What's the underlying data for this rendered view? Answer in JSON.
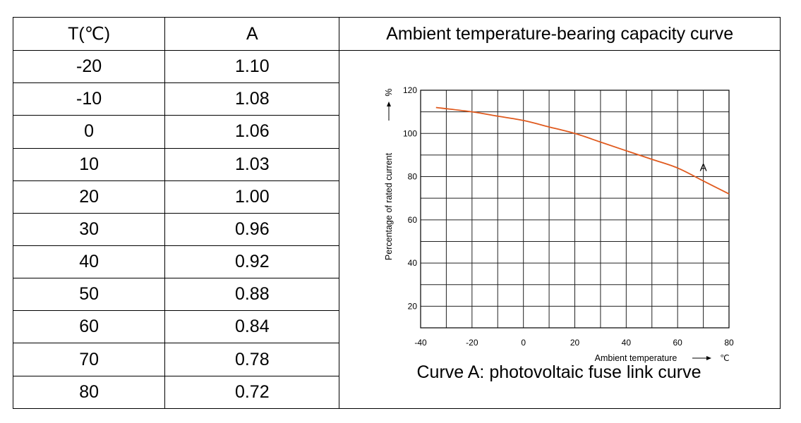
{
  "table": {
    "col_t_header": "T(℃)",
    "col_a_header": "A",
    "chart_header": "Ambient temperature-bearing capacity curve",
    "rows": [
      {
        "t": "-20",
        "a": "1.10"
      },
      {
        "t": "-10",
        "a": "1.08"
      },
      {
        "t": "0",
        "a": "1.06"
      },
      {
        "t": "10",
        "a": "1.03"
      },
      {
        "t": "20",
        "a": "1.00"
      },
      {
        "t": "30",
        "a": "0.96"
      },
      {
        "t": "40",
        "a": "0.92"
      },
      {
        "t": "50",
        "a": "0.88"
      },
      {
        "t": "60",
        "a": "0.84"
      },
      {
        "t": "70",
        "a": "0.78"
      },
      {
        "t": "80",
        "a": "0.72"
      }
    ]
  },
  "chart_data": {
    "type": "line",
    "title": "",
    "caption": "Curve A: photovoltaic fuse link curve",
    "xlabel": "Ambient temperature",
    "xunit": "℃",
    "ylabel": "Percentage of rated current",
    "yunit": "%",
    "xlim": [
      -40,
      80
    ],
    "ylim": [
      10,
      120
    ],
    "xticks": [
      -40,
      -20,
      0,
      20,
      40,
      60,
      80
    ],
    "yticks": [
      20,
      40,
      60,
      80,
      100,
      120
    ],
    "grid": true,
    "series": [
      {
        "name": "A",
        "color": "#e05a1e",
        "x": [
          -34,
          -20,
          -10,
          0,
          10,
          20,
          30,
          40,
          50,
          60,
          70,
          80
        ],
        "y": [
          112,
          110,
          108,
          106,
          103,
          100,
          96,
          92,
          88,
          84,
          78,
          72
        ]
      }
    ]
  }
}
